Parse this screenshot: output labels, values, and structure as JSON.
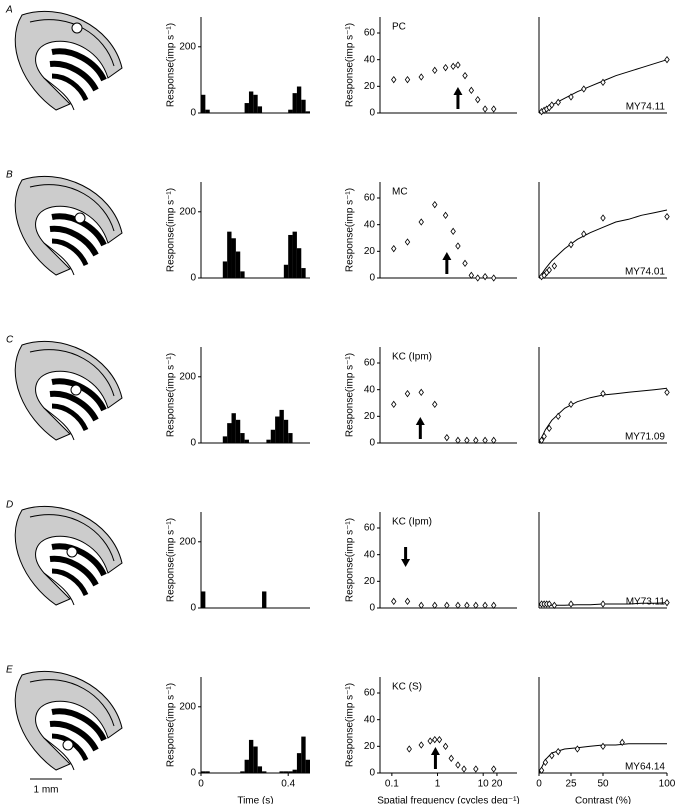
{
  "rows": [
    "A",
    "B",
    "C",
    "D",
    "E"
  ],
  "scale_bar": "1 mm",
  "chart_data": [
    {
      "type": "histogram",
      "ylabel": "Response(imp s⁻¹)",
      "xlim": [
        0,
        0.5
      ],
      "ylim": [
        0,
        290
      ],
      "yticks": [
        0,
        200
      ],
      "color": "#000000",
      "bins": [
        0,
        0.02,
        0.04,
        0.06,
        0.08,
        0.1,
        0.12,
        0.14,
        0.16,
        0.18,
        0.2,
        0.22,
        0.24,
        0.26,
        0.28,
        0.3,
        0.32,
        0.34,
        0.36,
        0.38,
        0.4,
        0.42,
        0.44,
        0.46,
        0.48,
        0.5
      ],
      "values": [
        55,
        10,
        0,
        0,
        0,
        0,
        0,
        0,
        0,
        0,
        30,
        65,
        55,
        20,
        0,
        0,
        0,
        0,
        0,
        0,
        10,
        60,
        80,
        40,
        5
      ]
    },
    {
      "type": "scatter",
      "log_x": true,
      "label": "PC",
      "ylabel": "Response(imp s⁻¹)",
      "xlim": [
        0.055,
        55
      ],
      "ylim": [
        0,
        72
      ],
      "yticks": [
        0,
        20,
        40,
        60
      ],
      "color": "#000000",
      "x": [
        0.11,
        0.22,
        0.44,
        0.87,
        1.5,
        2.2,
        2.8,
        4,
        5.5,
        7.6,
        11,
        17
      ],
      "values": [
        25,
        25,
        27,
        32,
        34,
        35,
        36,
        28,
        17,
        10,
        3,
        3
      ],
      "arrow": {
        "x": 2.8,
        "direction": "up"
      }
    },
    {
      "type": "scatter",
      "label": "MY74.11",
      "xlim": [
        0,
        100
      ],
      "ylim": [
        0,
        72
      ],
      "color": "#000000",
      "x": [
        2,
        4,
        6,
        8,
        10,
        15,
        25,
        35,
        50,
        100
      ],
      "values": [
        1,
        2,
        3,
        4,
        6,
        8,
        12,
        18,
        23,
        40
      ],
      "fit": {
        "x": [
          0,
          5,
          10,
          20,
          30,
          40,
          50,
          60,
          70,
          80,
          90,
          100
        ],
        "values": [
          0,
          3,
          6,
          11,
          16,
          20,
          24,
          28,
          31,
          34,
          37,
          40
        ]
      }
    },
    {
      "type": "histogram",
      "ylabel": "Response(imp s⁻¹)",
      "xlim": [
        0,
        0.5
      ],
      "ylim": [
        0,
        290
      ],
      "yticks": [
        0,
        200
      ],
      "color": "#000000",
      "bins": [
        0,
        0.02,
        0.04,
        0.06,
        0.08,
        0.1,
        0.12,
        0.14,
        0.16,
        0.18,
        0.2,
        0.22,
        0.24,
        0.26,
        0.28,
        0.3,
        0.32,
        0.34,
        0.36,
        0.38,
        0.4,
        0.42,
        0.44,
        0.46,
        0.48,
        0.5
      ],
      "values": [
        0,
        0,
        0,
        0,
        0,
        50,
        140,
        120,
        80,
        20,
        0,
        0,
        0,
        0,
        0,
        0,
        0,
        0,
        0,
        40,
        130,
        140,
        90,
        30,
        0
      ]
    },
    {
      "type": "scatter",
      "log_x": true,
      "label": "MC",
      "ylabel": "Response(imp s⁻¹)",
      "xlim": [
        0.055,
        55
      ],
      "ylim": [
        0,
        72
      ],
      "yticks": [
        0,
        20,
        40,
        60
      ],
      "color": "#000000",
      "x": [
        0.11,
        0.22,
        0.44,
        0.87,
        1.5,
        2.2,
        2.8,
        4,
        5.5,
        7.6,
        11,
        17
      ],
      "values": [
        22,
        27,
        42,
        55,
        47,
        35,
        24,
        11,
        2,
        0,
        1,
        0
      ],
      "arrow": {
        "x": 1.6,
        "direction": "up"
      }
    },
    {
      "type": "scatter",
      "label": "MY74.01",
      "xlim": [
        0,
        100
      ],
      "ylim": [
        0,
        72
      ],
      "color": "#000000",
      "x": [
        2,
        4,
        6,
        8,
        12,
        25,
        35,
        50,
        100
      ],
      "values": [
        1,
        2,
        4,
        6,
        9,
        25,
        33,
        45,
        46
      ],
      "fit": {
        "x": [
          0,
          5,
          10,
          20,
          30,
          40,
          50,
          60,
          70,
          80,
          90,
          100
        ],
        "values": [
          0,
          7,
          13,
          22,
          29,
          34,
          38,
          42,
          44,
          47,
          49,
          51
        ]
      }
    },
    {
      "type": "histogram",
      "ylabel": "Response(imp s⁻¹)",
      "xlim": [
        0,
        0.5
      ],
      "ylim": [
        0,
        290
      ],
      "yticks": [
        0,
        200
      ],
      "color": "#000000",
      "bins": [
        0,
        0.02,
        0.04,
        0.06,
        0.08,
        0.1,
        0.12,
        0.14,
        0.16,
        0.18,
        0.2,
        0.22,
        0.24,
        0.26,
        0.28,
        0.3,
        0.32,
        0.34,
        0.36,
        0.38,
        0.4,
        0.42,
        0.44,
        0.46,
        0.48,
        0.5
      ],
      "values": [
        0,
        0,
        0,
        0,
        0,
        20,
        60,
        90,
        70,
        30,
        10,
        0,
        0,
        0,
        0,
        10,
        40,
        80,
        100,
        70,
        30,
        0,
        0,
        0,
        0
      ]
    },
    {
      "type": "scatter",
      "log_x": true,
      "label": "KC (Ipm)",
      "ylabel": "Response(imp s⁻¹)",
      "xlim": [
        0.055,
        55
      ],
      "ylim": [
        0,
        72
      ],
      "yticks": [
        0,
        20,
        40,
        60
      ],
      "color": "#000000",
      "x": [
        0.11,
        0.22,
        0.44,
        0.87,
        1.6,
        2.8,
        4.4,
        6.9,
        11,
        17
      ],
      "values": [
        29,
        37,
        38,
        29,
        4,
        2,
        2,
        2,
        2,
        2
      ],
      "arrow": {
        "x": 0.42,
        "direction": "up"
      }
    },
    {
      "type": "scatter",
      "label": "MY71.09",
      "xlim": [
        0,
        100
      ],
      "ylim": [
        0,
        72
      ],
      "color": "#000000",
      "x": [
        2,
        4,
        8,
        15,
        25,
        50,
        100
      ],
      "values": [
        2,
        5,
        11,
        20,
        29,
        37,
        38
      ],
      "fit": {
        "x": [
          0,
          5,
          10,
          20,
          30,
          40,
          50,
          60,
          70,
          80,
          90,
          100
        ],
        "values": [
          0,
          10,
          17,
          26,
          31,
          34,
          36,
          37,
          38,
          39,
          40,
          41
        ]
      }
    },
    {
      "type": "histogram",
      "ylabel": "Response(imp s⁻¹)",
      "xlim": [
        0,
        0.5
      ],
      "ylim": [
        0,
        290
      ],
      "yticks": [
        0,
        200
      ],
      "color": "#000000",
      "bins": [
        0,
        0.02,
        0.04,
        0.06,
        0.08,
        0.1,
        0.12,
        0.14,
        0.16,
        0.18,
        0.2,
        0.22,
        0.24,
        0.26,
        0.28,
        0.3,
        0.32,
        0.34,
        0.36,
        0.38,
        0.4,
        0.42,
        0.44,
        0.46,
        0.48,
        0.5
      ],
      "values": [
        50,
        0,
        0,
        0,
        0,
        0,
        0,
        0,
        0,
        0,
        0,
        0,
        0,
        0,
        50,
        0,
        0,
        0,
        0,
        0,
        0,
        0,
        0,
        0,
        0
      ]
    },
    {
      "type": "scatter",
      "log_x": true,
      "label": "KC (Ipm)",
      "ylabel": "Response(imp s⁻¹)",
      "xlim": [
        0.055,
        55
      ],
      "ylim": [
        0,
        72
      ],
      "yticks": [
        0,
        20,
        40,
        60
      ],
      "color": "#000000",
      "x": [
        0.11,
        0.22,
        0.44,
        0.87,
        1.6,
        2.8,
        4.4,
        6.9,
        11,
        17
      ],
      "values": [
        5,
        5,
        2,
        2,
        2,
        2,
        2,
        2,
        2,
        2
      ],
      "arrow": {
        "x": 0.2,
        "direction": "down"
      }
    },
    {
      "type": "scatter",
      "label": "MY73.11",
      "xlim": [
        0,
        100
      ],
      "ylim": [
        0,
        72
      ],
      "color": "#000000",
      "x": [
        2,
        4,
        6,
        8,
        12,
        25,
        50,
        100
      ],
      "values": [
        3,
        3,
        3,
        3,
        2,
        3,
        3,
        4
      ],
      "fit": {
        "x": [
          0,
          5,
          10,
          20,
          30,
          40,
          50,
          60,
          70,
          80,
          90,
          100
        ],
        "values": [
          2,
          2,
          2,
          2,
          2.5,
          2.5,
          3,
          3,
          3,
          3.5,
          3.5,
          4
        ]
      }
    },
    {
      "type": "histogram",
      "ylabel": "Response(imp s⁻¹)",
      "xlabel": "Time (s)",
      "xlim": [
        0,
        0.5
      ],
      "ylim": [
        0,
        290
      ],
      "yticks": [
        0,
        200
      ],
      "xticks": [
        0,
        0.4
      ],
      "color": "#000000",
      "bins": [
        0,
        0.02,
        0.04,
        0.06,
        0.08,
        0.1,
        0.12,
        0.14,
        0.16,
        0.18,
        0.2,
        0.22,
        0.24,
        0.26,
        0.28,
        0.3,
        0.32,
        0.34,
        0.36,
        0.38,
        0.4,
        0.42,
        0.44,
        0.46,
        0.48,
        0.5
      ],
      "values": [
        5,
        5,
        0,
        0,
        0,
        0,
        0,
        0,
        0,
        5,
        40,
        100,
        80,
        20,
        5,
        0,
        0,
        0,
        5,
        5,
        5,
        10,
        60,
        110,
        40
      ]
    },
    {
      "type": "scatter",
      "log_x": true,
      "label": "KC (S)",
      "ylabel": "Response(imp s⁻¹)",
      "xlabel": "Spatial frequency (cycles deg⁻¹)",
      "xlim": [
        0.055,
        55
      ],
      "ylim": [
        0,
        72
      ],
      "yticks": [
        0,
        20,
        40,
        60
      ],
      "xticks": [
        0.1,
        1,
        10,
        20
      ],
      "color": "#000000",
      "x": [
        0.24,
        0.44,
        0.69,
        0.87,
        1.1,
        1.5,
        2,
        2.8,
        3.8,
        6.9,
        17
      ],
      "values": [
        18,
        21,
        24,
        25,
        25,
        20,
        11,
        6,
        3,
        3,
        3
      ],
      "arrow": {
        "x": 0.9,
        "direction": "up"
      }
    },
    {
      "type": "scatter",
      "label": "MY64.14",
      "xlabel": "Contrast (%)",
      "xlim": [
        0,
        100
      ],
      "ylim": [
        0,
        72
      ],
      "xticks": [
        0,
        25,
        50,
        100
      ],
      "color": "#000000",
      "x": [
        2,
        5,
        10,
        15,
        30,
        50,
        65
      ],
      "values": [
        2,
        8,
        13,
        16,
        18,
        20,
        23
      ],
      "fit": {
        "x": [
          0,
          5,
          10,
          20,
          30,
          40,
          50,
          60,
          70,
          80,
          90,
          100
        ],
        "values": [
          0,
          10,
          15,
          18,
          19,
          20,
          21,
          21,
          22,
          22,
          22,
          22
        ]
      }
    }
  ]
}
